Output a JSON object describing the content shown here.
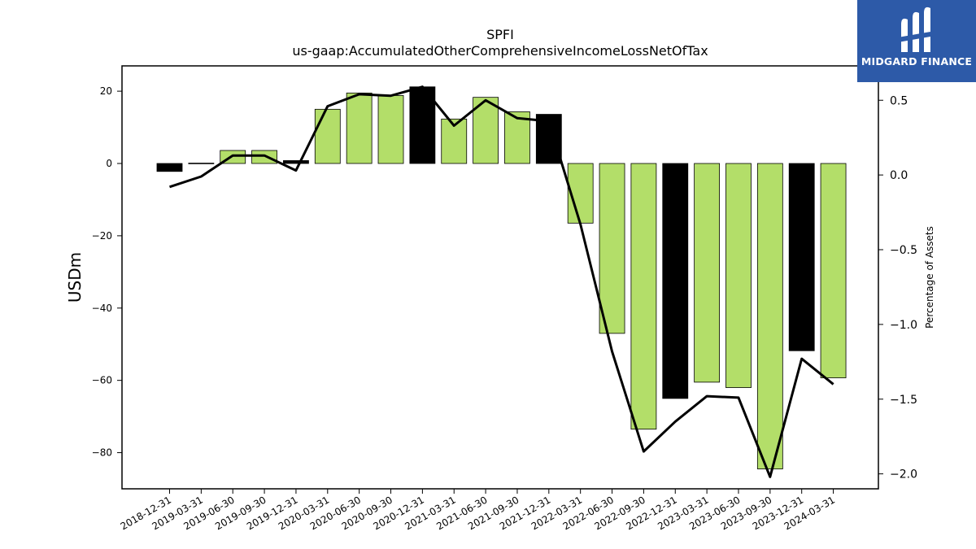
{
  "logo": {
    "text": "MIDGARD FINANCE",
    "background": "#2d5aa8"
  },
  "chart_data": {
    "type": "bar",
    "title": "SPFI",
    "subtitle": "us-gaap:AccumulatedOtherComprehensiveIncomeLossNetOfTax",
    "ylabel": "USDm",
    "ylabel_right": "Percentage of Assets",
    "ylim": [
      -90,
      27
    ],
    "ylim_right": [
      -2.1,
      0.73
    ],
    "yticks": [
      20,
      0,
      -20,
      -40,
      -60,
      -80
    ],
    "yticks_right": [
      0.5,
      0.0,
      -0.5,
      -1.0,
      -1.5,
      -2.0
    ],
    "categories": [
      "2018-12-31",
      "2019-03-31",
      "2019-06-30",
      "2019-09-30",
      "2019-12-31",
      "2020-03-31",
      "2020-06-30",
      "2020-09-30",
      "2020-12-31",
      "2021-03-31",
      "2021-06-30",
      "2021-09-30",
      "2021-12-31",
      "2022-03-31",
      "2022-06-30",
      "2022-09-30",
      "2022-12-31",
      "2023-03-31",
      "2023-06-30",
      "2023-09-30",
      "2023-12-31",
      "2024-03-31"
    ],
    "series": [
      {
        "type": "bar",
        "values": [
          -2.2,
          0.1,
          3.6,
          3.6,
          0.8,
          15.0,
          19.5,
          18.8,
          21.2,
          12.3,
          18.3,
          14.3,
          13.6,
          -16.5,
          -47.0,
          -73.5,
          -65.0,
          -60.5,
          -62.0,
          -84.5,
          -51.8,
          -59.3
        ],
        "year_end": [
          true,
          false,
          false,
          false,
          true,
          false,
          false,
          false,
          true,
          false,
          false,
          false,
          true,
          false,
          false,
          false,
          true,
          false,
          false,
          false,
          true,
          false
        ]
      },
      {
        "type": "line",
        "values": [
          -0.08,
          -0.01,
          0.13,
          0.13,
          0.03,
          0.46,
          0.54,
          0.53,
          0.59,
          0.33,
          0.5,
          0.38,
          0.36,
          -0.33,
          -1.18,
          -1.85,
          -1.65,
          -1.48,
          -1.49,
          -2.02,
          -1.23,
          -1.4
        ]
      }
    ],
    "colors": {
      "bar": "#b3de69",
      "bar_year_end": "#000000",
      "line": "#000000"
    }
  }
}
